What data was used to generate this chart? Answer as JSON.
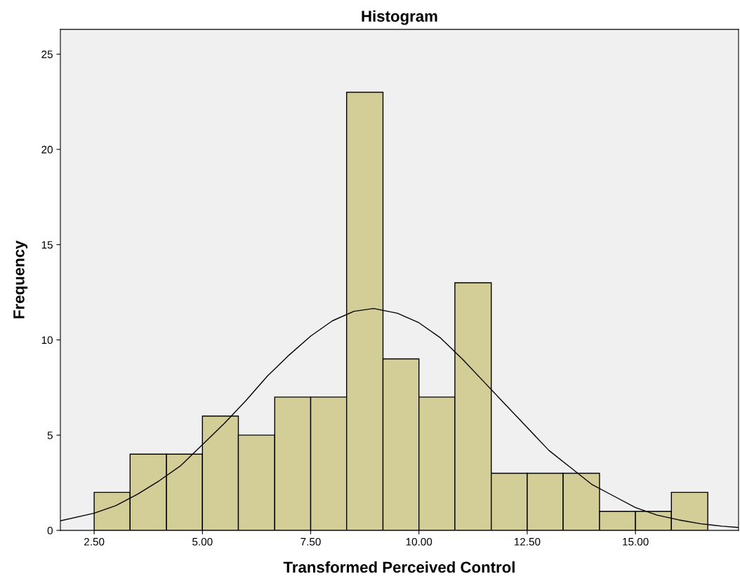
{
  "chart_data": {
    "type": "histogram",
    "title": "Histogram",
    "xlabel": "Transformed Perceived Control",
    "ylabel": "Frequency",
    "color": "#d3ce97",
    "bins": [
      2.5,
      3.33,
      4.17,
      5.0,
      5.83,
      6.67,
      7.5,
      8.33,
      9.17,
      10.0,
      10.83,
      11.67,
      12.5,
      13.33,
      14.17,
      15.0,
      15.83,
      16.67
    ],
    "values": [
      2,
      4,
      4,
      6,
      5,
      7,
      7,
      23,
      9,
      7,
      13,
      3,
      3,
      3,
      1,
      1,
      2
    ],
    "series": [
      {
        "type": "line",
        "color": "#000000",
        "x": [
          1.72,
          2.5,
          3.0,
          3.5,
          4.0,
          4.5,
          5.0,
          5.5,
          6.0,
          6.5,
          7.0,
          7.5,
          8.0,
          8.5,
          8.95,
          9.5,
          10.0,
          10.5,
          11.0,
          11.5,
          12.0,
          12.5,
          13.0,
          13.5,
          14.0,
          14.5,
          15.0,
          15.5,
          16.0,
          16.5,
          17.0,
          17.38
        ],
        "values": [
          0.5,
          0.9,
          1.3,
          1.9,
          2.6,
          3.4,
          4.5,
          5.6,
          6.8,
          8.1,
          9.2,
          10.2,
          11.0,
          11.5,
          11.65,
          11.4,
          10.9,
          10.1,
          9.0,
          7.8,
          6.6,
          5.4,
          4.2,
          3.3,
          2.4,
          1.8,
          1.2,
          0.8,
          0.55,
          0.35,
          0.22,
          0.15
        ]
      }
    ],
    "xlim": [
      1.72,
      17.38
    ],
    "ylim": [
      0,
      26.3
    ],
    "xticks": [
      {
        "value": 2.5,
        "label": "2.50"
      },
      {
        "value": 5,
        "label": "5.00"
      },
      {
        "value": 7.5,
        "label": "7.50"
      },
      {
        "value": 10,
        "label": "10.00"
      },
      {
        "value": 12.5,
        "label": "12.50"
      },
      {
        "value": 15,
        "label": "15.00"
      }
    ],
    "yticks": [
      0,
      5,
      10,
      15,
      20,
      25
    ],
    "grid": false,
    "legend": false
  }
}
